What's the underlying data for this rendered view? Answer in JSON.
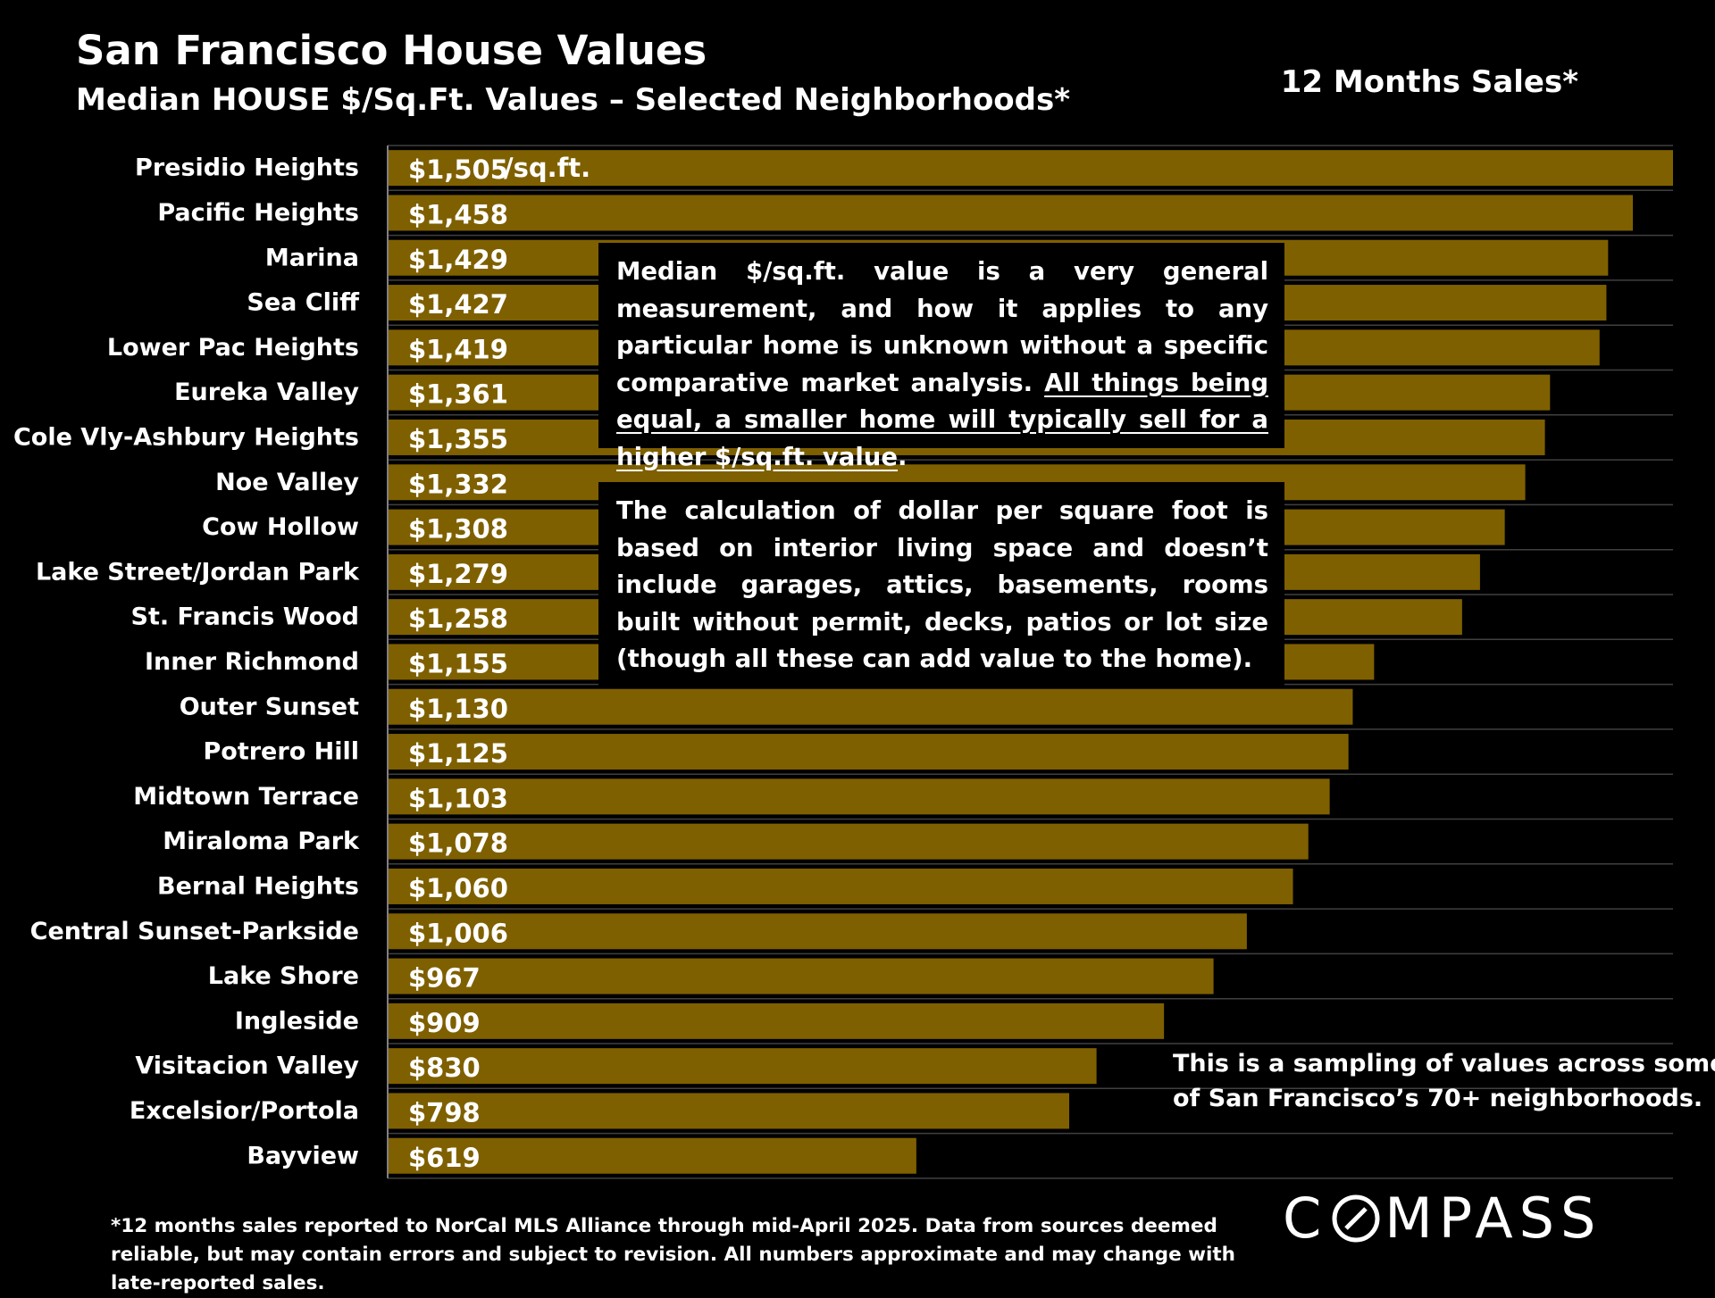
{
  "header": {
    "title": "San Francisco House Values",
    "subtitle": "Median HOUSE $/Sq.Ft. Values – Selected Neighborhoods*",
    "period": "12 Months Sales*"
  },
  "notes": {
    "note1_text": "Median $/sq.ft. value is a very general measurement, and how it applies to any particular home is unknown without a specific comparative market analysis. ",
    "note1_underlined": "All things being equal, a smaller home will typically sell for a higher $/sq.ft. value",
    "note1_end": ".",
    "note2_text": "The calculation of dollar per square foot is based on interior living space and doesn’t include garages, attics, basements, rooms built without permit, decks, patios or lot size (though all these can add value to the home).",
    "sampling_line1": "This is a sampling of values across some",
    "sampling_line2": "of San Francisco’s 70+ neighborhoods.",
    "footnote": "*12 months sales reported to NorCal MLS Alliance through mid-April 2025. Data from sources deemed reliable, but may contain errors and subject to revision. All numbers approximate and may change with late-reported sales."
  },
  "logo": {
    "text_before": "C",
    "text_after": "MPASS"
  },
  "colors": {
    "bar": "#7f6000",
    "grid": "#404040",
    "axis": "#7f7f7f",
    "background": "#000000",
    "text": "#ffffff"
  },
  "chart_data": {
    "type": "bar",
    "orientation": "horizontal",
    "categories": [
      "Presidio Heights",
      "Pacific Heights",
      "Marina",
      "Sea Cliff",
      "Lower Pac Heights",
      "Eureka Valley",
      "Cole Vly-Ashbury Heights",
      "Noe Valley",
      "Cow Hollow",
      "Lake Street/Jordan Park",
      "St. Francis Wood",
      "Inner Richmond",
      "Outer Sunset",
      "Potrero Hill",
      "Midtown Terrace",
      "Miraloma Park",
      "Bernal Heights",
      "Central Sunset-Parkside",
      "Lake Shore",
      "Ingleside",
      "Visitacion Valley",
      "Excelsior/Portola",
      "Bayview"
    ],
    "values": [
      1505,
      1458,
      1429,
      1427,
      1419,
      1361,
      1355,
      1332,
      1308,
      1279,
      1258,
      1155,
      1130,
      1125,
      1103,
      1078,
      1060,
      1006,
      967,
      909,
      830,
      798,
      619
    ],
    "value_labels": [
      "$1,505",
      "$1,458",
      "$1,429",
      "$1,427",
      "$1,419",
      "$1,361",
      "$1,355",
      "$1,332",
      "$1,308",
      "$1,279",
      "$1,258",
      "$1,155",
      "$1,130",
      "$1,125",
      "$1,103",
      "$1,078",
      "$1,060",
      "$1,006",
      "$967",
      "$909",
      "$830",
      "$798",
      "$619"
    ],
    "first_label_unit": "/sq.ft.",
    "xlim": [
      0,
      1505
    ],
    "grid": true,
    "legend": "none"
  }
}
